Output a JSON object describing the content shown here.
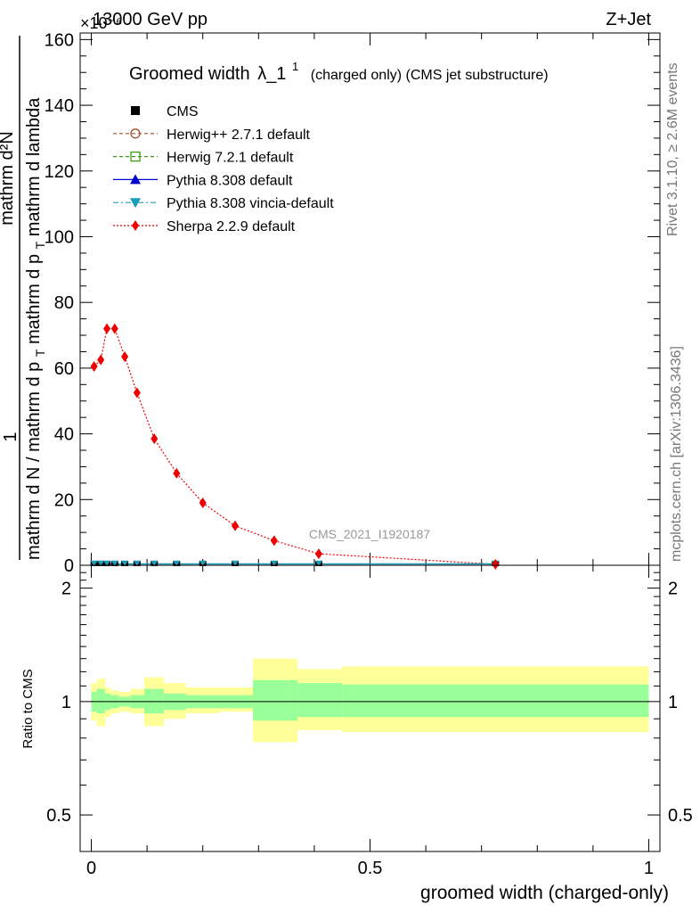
{
  "header": {
    "left": "13000 GeV pp",
    "right": "Z+Jet",
    "exponent": "×10⁻⁶"
  },
  "side_text": {
    "rivet": "Rivet 3.1.10, ≥ 2.6M events",
    "mcplots": "mcplots.cern.ch [arXiv:1306.3436]"
  },
  "watermark": "CMS_2021_I1920187",
  "chart_data": [
    {
      "type": "line",
      "title": "Groomed width",
      "title_symbol": "λ_1",
      "title_superscript": "1",
      "title_suffix": "(charged only) (CMS jet substructure)",
      "ylabel_line1": "1",
      "ylabel_line2": "mathrm d N / mathrm d p_T mathrm d p_T mathrm d lambda",
      "ylabel_line2_pre": "mathrm d N / mathrm d p",
      "ylabel_line2_sub1": "T",
      "ylabel_line2_mid": "mathrm d p",
      "ylabel_line2_sub2": "T",
      "ylabel_line2_post": "mathrm d lambda",
      "ylabel_numerator": "mathrm d²N",
      "xlim": [
        -0.02,
        1.02
      ],
      "ylim": [
        0,
        162
      ],
      "yticks": [
        "0",
        "20",
        "40",
        "60",
        "80",
        "100",
        "120",
        "140",
        "160"
      ],
      "legend_position": "top-left",
      "legend": [
        {
          "label": "CMS",
          "color": "#000000",
          "marker": "square-filled",
          "dash": "none"
        },
        {
          "label": "Herwig++ 2.7.1 default",
          "color": "#a0522d",
          "marker": "circle-open",
          "dash": "dashed"
        },
        {
          "label": "Herwig 7.2.1 default",
          "color": "#3c9a14",
          "marker": "square-open",
          "dash": "dashed"
        },
        {
          "label": "Pythia 8.308 default",
          "color": "#0000cc",
          "marker": "triangle-up",
          "dash": "solid"
        },
        {
          "label": "Pythia 8.308 vincia-default",
          "color": "#1a9eb8",
          "marker": "triangle-down",
          "dash": "dashdot"
        },
        {
          "label": "Sherpa 2.2.9 default",
          "color": "#ee0000",
          "marker": "diamond",
          "dash": "dotted"
        }
      ],
      "series": [
        {
          "name": "Sherpa 2.2.9 default",
          "x": [
            0.005,
            0.017,
            0.028,
            0.042,
            0.06,
            0.082,
            0.113,
            0.153,
            0.2,
            0.258,
            0.328,
            0.408,
            0.725
          ],
          "y": [
            60.5,
            62.5,
            72.0,
            72.0,
            63.5,
            52.5,
            38.5,
            28.0,
            19.0,
            12.0,
            7.5,
            3.5,
            0.3
          ]
        },
        {
          "name": "CMS",
          "x": [
            0.005,
            0.017,
            0.028,
            0.042,
            0.06,
            0.082,
            0.113,
            0.153,
            0.2,
            0.258,
            0.328,
            0.408,
            0.725
          ],
          "y": [
            0.3,
            0.3,
            0.3,
            0.3,
            0.3,
            0.3,
            0.3,
            0.3,
            0.3,
            0.3,
            0.3,
            0.3,
            0.3
          ]
        }
      ]
    },
    {
      "type": "area",
      "ylabel": "Ratio to CMS",
      "xlabel": "groomed width (charged-only)",
      "xlim": [
        -0.02,
        1.02
      ],
      "ylim": [
        0.4,
        2.3
      ],
      "log_y": true,
      "yticks": [
        "0.5",
        "1",
        "2"
      ],
      "xticks": [
        "0",
        "0.5",
        "1"
      ],
      "reference_line": 1.0,
      "bins": [
        {
          "x0": 0.0,
          "x1": 0.01,
          "stat_lo": 0.94,
          "stat_hi": 1.06,
          "tot_lo": 0.89,
          "tot_hi": 1.12
        },
        {
          "x0": 0.01,
          "x1": 0.025,
          "stat_lo": 0.93,
          "stat_hi": 1.08,
          "tot_lo": 0.86,
          "tot_hi": 1.15
        },
        {
          "x0": 0.025,
          "x1": 0.035,
          "stat_lo": 0.95,
          "stat_hi": 1.05,
          "tot_lo": 0.91,
          "tot_hi": 1.09
        },
        {
          "x0": 0.035,
          "x1": 0.05,
          "stat_lo": 0.96,
          "stat_hi": 1.04,
          "tot_lo": 0.93,
          "tot_hi": 1.07
        },
        {
          "x0": 0.05,
          "x1": 0.07,
          "stat_lo": 0.97,
          "stat_hi": 1.03,
          "tot_lo": 0.94,
          "tot_hi": 1.06
        },
        {
          "x0": 0.07,
          "x1": 0.095,
          "stat_lo": 0.96,
          "stat_hi": 1.04,
          "tot_lo": 0.93,
          "tot_hi": 1.08
        },
        {
          "x0": 0.095,
          "x1": 0.13,
          "stat_lo": 0.93,
          "stat_hi": 1.08,
          "tot_lo": 0.86,
          "tot_hi": 1.16
        },
        {
          "x0": 0.13,
          "x1": 0.17,
          "stat_lo": 0.95,
          "stat_hi": 1.05,
          "tot_lo": 0.9,
          "tot_hi": 1.12
        },
        {
          "x0": 0.17,
          "x1": 0.23,
          "stat_lo": 0.96,
          "stat_hi": 1.04,
          "tot_lo": 0.93,
          "tot_hi": 1.09
        },
        {
          "x0": 0.23,
          "x1": 0.29,
          "stat_lo": 0.96,
          "stat_hi": 1.04,
          "tot_lo": 0.94,
          "tot_hi": 1.09
        },
        {
          "x0": 0.29,
          "x1": 0.37,
          "stat_lo": 0.89,
          "stat_hi": 1.14,
          "tot_lo": 0.78,
          "tot_hi": 1.3
        },
        {
          "x0": 0.37,
          "x1": 0.45,
          "stat_lo": 0.91,
          "stat_hi": 1.12,
          "tot_lo": 0.84,
          "tot_hi": 1.22
        },
        {
          "x0": 0.45,
          "x1": 1.0,
          "stat_lo": 0.91,
          "stat_hi": 1.11,
          "tot_lo": 0.83,
          "tot_hi": 1.24
        }
      ]
    }
  ]
}
